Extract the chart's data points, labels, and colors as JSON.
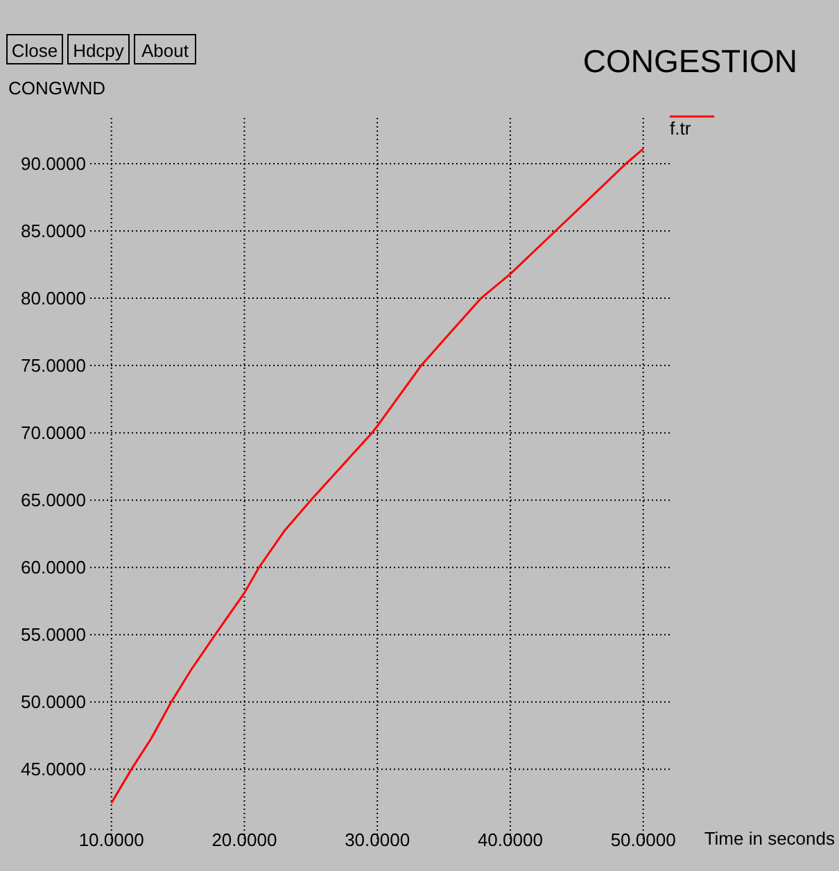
{
  "chart_data": {
    "type": "line",
    "title": "CONGESTION",
    "ylabel": "CONGWND",
    "xlabel": "Time in seconds",
    "annotations": [
      "Close",
      "Hdcpy",
      "About"
    ],
    "xlim": [
      8.4,
      52
    ],
    "ylim": [
      39.3,
      93.4
    ],
    "xticks": [
      {
        "value": 10,
        "label": "10.0000"
      },
      {
        "value": 20,
        "label": "20.0000"
      },
      {
        "value": 30,
        "label": "30.0000"
      },
      {
        "value": 40,
        "label": "40.0000"
      },
      {
        "value": 50,
        "label": "50.0000"
      }
    ],
    "yticks": [
      {
        "value": 45,
        "label": "45.0000"
      },
      {
        "value": 50,
        "label": "50.0000"
      },
      {
        "value": 55,
        "label": "55.0000"
      },
      {
        "value": 60,
        "label": "60.0000"
      },
      {
        "value": 65,
        "label": "65.0000"
      },
      {
        "value": 70,
        "label": "70.0000"
      },
      {
        "value": 75,
        "label": "75.0000"
      },
      {
        "value": 80,
        "label": "80.0000"
      },
      {
        "value": 85,
        "label": "85.0000"
      },
      {
        "value": 90,
        "label": "90.0000"
      }
    ],
    "grid": true,
    "legend": "top right",
    "marker": "none",
    "line_style": "solid",
    "series": [
      {
        "name": "f.tr",
        "color": "#ff0000",
        "x": [
          10,
          11.5,
          13,
          14.5,
          16,
          17.8,
          20,
          21.1,
          23,
          25,
          27.3,
          29.6,
          30,
          33.3,
          35,
          37.8,
          40,
          43.4,
          45,
          48.7,
          50
        ],
        "values": [
          42.5,
          45,
          47.3,
          50,
          52.4,
          55,
          58.1,
          60,
          62.7,
          65,
          67.5,
          70,
          70.5,
          75,
          76.9,
          80,
          81.8,
          85,
          86.5,
          90,
          91.1
        ]
      }
    ]
  }
}
